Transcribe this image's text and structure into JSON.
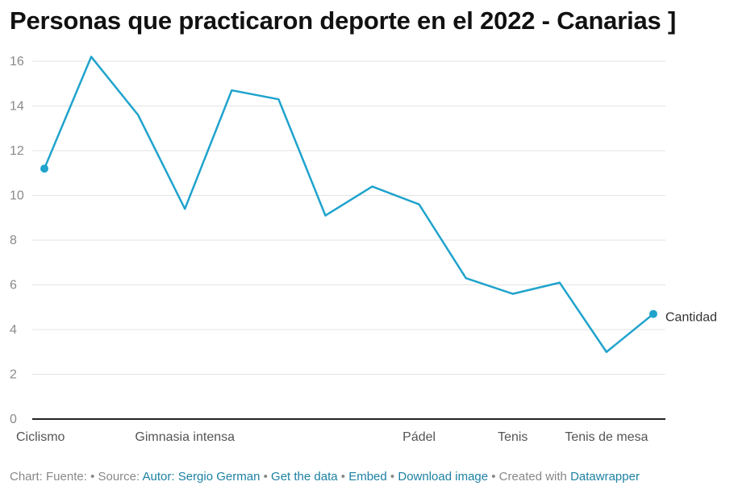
{
  "title": "Personas que practicaron deporte en el 2022 - Canarias ]",
  "chart_data": {
    "type": "line",
    "x_tick_labels": [
      "Ciclismo",
      "Gimnasia intensa",
      "Pádel",
      "Tenis",
      "Tenis de mesa"
    ],
    "x_tick_indices": [
      0,
      3,
      8,
      10,
      12
    ],
    "series": [
      {
        "name": "Cantidad",
        "color": "#1fa3cc",
        "values": [
          11.2,
          16.2,
          13.6,
          9.4,
          14.7,
          14.3,
          9.1,
          10.4,
          9.6,
          6.3,
          5.6,
          6.1,
          3.0,
          4.7
        ]
      }
    ],
    "y_ticks": [
      "0",
      "2",
      "4",
      "6",
      "8",
      "10",
      "12",
      "14",
      "16"
    ],
    "ylim": [
      0,
      16
    ],
    "grid": true
  },
  "footer": {
    "chart_label": "Chart: Fuente:",
    "source_prefix": "• Source:",
    "source_link": "Autor: Sergio German",
    "sep1": "•",
    "get_data": "Get the data",
    "sep2": "•",
    "embed": "Embed",
    "sep3": "•",
    "download": "Download image",
    "created_prefix": "• Created with",
    "datawrapper": "Datawrapper"
  }
}
